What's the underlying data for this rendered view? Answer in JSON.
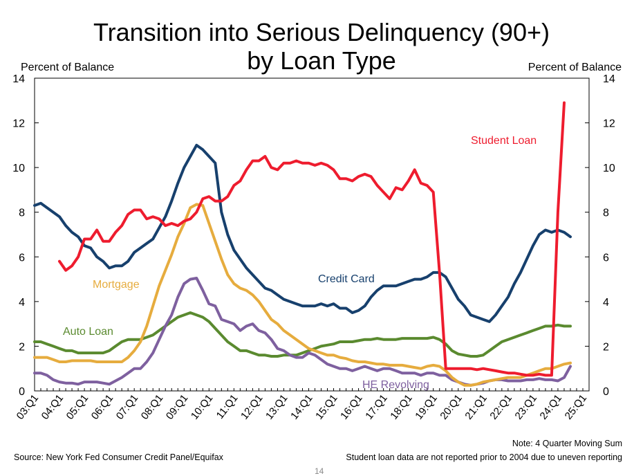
{
  "chart_data": {
    "type": "line",
    "title": [
      "Transition into Serious Delinquency (90+)",
      "by Loan Type"
    ],
    "ylabel_left": "Percent of Balance",
    "ylabel_right": "Percent of Balance",
    "ylim": [
      0,
      14
    ],
    "yticks": [
      0,
      2,
      4,
      6,
      8,
      10,
      12,
      14
    ],
    "x_start": "03:Q1",
    "x_end": "25:Q2",
    "xtick_labels": [
      "03:Q1",
      "04:Q1",
      "05:Q1",
      "06:Q1",
      "07:Q1",
      "08:Q1",
      "09:Q1",
      "10:Q1",
      "11:Q1",
      "12:Q1",
      "13:Q1",
      "14:Q1",
      "15:Q1",
      "16:Q1",
      "17:Q1",
      "18:Q1",
      "19:Q1",
      "20:Q1",
      "21:Q1",
      "22:Q1",
      "23:Q1",
      "24:Q1",
      "25:Q1"
    ],
    "grid": false,
    "series": [
      {
        "name": "Student Loan",
        "color": "#ee1c2e",
        "start": "04:Q1",
        "values": [
          5.8,
          5.4,
          5.6,
          6.0,
          6.8,
          6.8,
          7.2,
          6.7,
          6.7,
          7.1,
          7.4,
          7.9,
          8.1,
          8.1,
          7.7,
          7.8,
          7.7,
          7.4,
          7.5,
          7.4,
          7.6,
          7.7,
          8.0,
          8.6,
          8.7,
          8.5,
          8.5,
          8.7,
          9.2,
          9.4,
          9.9,
          10.3,
          10.3,
          10.5,
          10.0,
          9.9,
          10.2,
          10.2,
          10.3,
          10.2,
          10.2,
          10.1,
          10.2,
          10.1,
          9.9,
          9.5,
          9.5,
          9.4,
          9.6,
          9.7,
          9.6,
          9.2,
          8.9,
          8.6,
          9.1,
          9.0,
          9.4,
          9.9,
          9.3,
          9.2,
          8.9,
          5.3,
          1.0,
          1.0,
          1.0,
          1.0,
          1.0,
          0.95,
          1.0,
          0.95,
          0.9,
          0.85,
          0.8,
          0.8,
          0.75,
          0.7,
          0.7,
          0.75,
          0.7,
          0.7,
          8.0,
          12.9
        ]
      },
      {
        "name": "Credit Card",
        "color": "#17406d",
        "start": "03:Q1",
        "values": [
          8.3,
          8.4,
          8.2,
          8.0,
          7.8,
          7.4,
          7.1,
          6.9,
          6.5,
          6.4,
          6.0,
          5.8,
          5.5,
          5.6,
          5.6,
          5.8,
          6.2,
          6.4,
          6.6,
          6.8,
          7.3,
          7.8,
          8.5,
          9.3,
          10.0,
          10.5,
          11.0,
          10.8,
          10.5,
          10.2,
          8.0,
          7.0,
          6.3,
          5.9,
          5.5,
          5.2,
          4.9,
          4.6,
          4.5,
          4.3,
          4.1,
          4.0,
          3.9,
          3.8,
          3.8,
          3.8,
          3.9,
          3.8,
          3.9,
          3.7,
          3.7,
          3.5,
          3.6,
          3.8,
          4.2,
          4.5,
          4.7,
          4.7,
          4.7,
          4.8,
          4.9,
          5.0,
          5.0,
          5.1,
          5.3,
          5.3,
          5.1,
          4.6,
          4.1,
          3.8,
          3.4,
          3.3,
          3.2,
          3.1,
          3.4,
          3.8,
          4.2,
          4.8,
          5.3,
          5.9,
          6.5,
          7.0,
          7.2,
          7.1,
          7.2,
          7.1,
          6.9
        ]
      },
      {
        "name": "Mortgage",
        "color": "#e6ac3e",
        "start": "03:Q1",
        "values": [
          1.5,
          1.5,
          1.5,
          1.4,
          1.3,
          1.3,
          1.35,
          1.35,
          1.35,
          1.35,
          1.3,
          1.3,
          1.3,
          1.3,
          1.3,
          1.5,
          1.8,
          2.2,
          2.9,
          3.8,
          4.7,
          5.4,
          6.1,
          6.9,
          7.5,
          8.2,
          8.35,
          8.3,
          7.5,
          6.7,
          5.9,
          5.2,
          4.8,
          4.6,
          4.5,
          4.3,
          4.0,
          3.6,
          3.2,
          3.0,
          2.7,
          2.5,
          2.3,
          2.1,
          1.9,
          1.8,
          1.7,
          1.6,
          1.6,
          1.5,
          1.45,
          1.35,
          1.3,
          1.3,
          1.25,
          1.2,
          1.2,
          1.15,
          1.15,
          1.15,
          1.1,
          1.05,
          1.0,
          1.1,
          1.15,
          1.1,
          0.9,
          0.6,
          0.4,
          0.25,
          0.25,
          0.3,
          0.4,
          0.45,
          0.5,
          0.55,
          0.6,
          0.6,
          0.6,
          0.7,
          0.8,
          0.9,
          1.0,
          1.0,
          1.1,
          1.2,
          1.25
        ]
      },
      {
        "name": "Auto Loan",
        "color": "#5a8a2f",
        "start": "03:Q1",
        "values": [
          2.2,
          2.2,
          2.1,
          2.0,
          1.9,
          1.8,
          1.8,
          1.7,
          1.7,
          1.7,
          1.7,
          1.7,
          1.8,
          2.0,
          2.2,
          2.3,
          2.3,
          2.3,
          2.4,
          2.5,
          2.7,
          2.9,
          3.1,
          3.3,
          3.4,
          3.5,
          3.4,
          3.3,
          3.1,
          2.8,
          2.5,
          2.2,
          2.0,
          1.8,
          1.8,
          1.7,
          1.6,
          1.6,
          1.55,
          1.55,
          1.6,
          1.6,
          1.6,
          1.7,
          1.8,
          1.9,
          2.0,
          2.05,
          2.1,
          2.2,
          2.2,
          2.2,
          2.25,
          2.3,
          2.3,
          2.35,
          2.3,
          2.3,
          2.3,
          2.35,
          2.35,
          2.35,
          2.35,
          2.35,
          2.4,
          2.3,
          2.1,
          1.8,
          1.65,
          1.6,
          1.55,
          1.55,
          1.6,
          1.8,
          2.0,
          2.2,
          2.3,
          2.4,
          2.5,
          2.6,
          2.7,
          2.8,
          2.9,
          2.9,
          2.95,
          2.9,
          2.9
        ]
      },
      {
        "name": "HE Revolving",
        "color": "#7e609f",
        "start": "03:Q1",
        "values": [
          0.8,
          0.8,
          0.7,
          0.5,
          0.4,
          0.35,
          0.35,
          0.3,
          0.4,
          0.4,
          0.4,
          0.35,
          0.3,
          0.45,
          0.6,
          0.8,
          1.0,
          1.0,
          1.3,
          1.7,
          2.3,
          2.9,
          3.4,
          4.2,
          4.8,
          5.0,
          5.05,
          4.5,
          3.9,
          3.8,
          3.2,
          3.1,
          3.0,
          2.7,
          2.9,
          3.0,
          2.7,
          2.6,
          2.3,
          1.9,
          1.8,
          1.6,
          1.5,
          1.5,
          1.7,
          1.6,
          1.4,
          1.2,
          1.1,
          1.0,
          1.0,
          0.9,
          1.0,
          1.1,
          1.0,
          0.9,
          1.0,
          1.0,
          0.9,
          0.8,
          0.8,
          0.8,
          0.7,
          0.8,
          0.8,
          0.7,
          0.7,
          0.5,
          0.4,
          0.3,
          0.25,
          0.3,
          0.35,
          0.45,
          0.5,
          0.5,
          0.45,
          0.45,
          0.45,
          0.5,
          0.5,
          0.55,
          0.5,
          0.5,
          0.45,
          0.6,
          1.1
        ]
      }
    ],
    "series_labels": [
      "Student Loan",
      "Credit Card",
      "Mortgage",
      "Auto Loan",
      "HE Revolving"
    ]
  },
  "notes": {
    "moving_sum": "Note: 4 Quarter Moving Sum",
    "source": "Source: New York Fed Consumer Credit Panel/Equifax",
    "student_loan": "Student loan data are not reported prior to 2004 due to uneven reporting"
  },
  "page_number": "14"
}
